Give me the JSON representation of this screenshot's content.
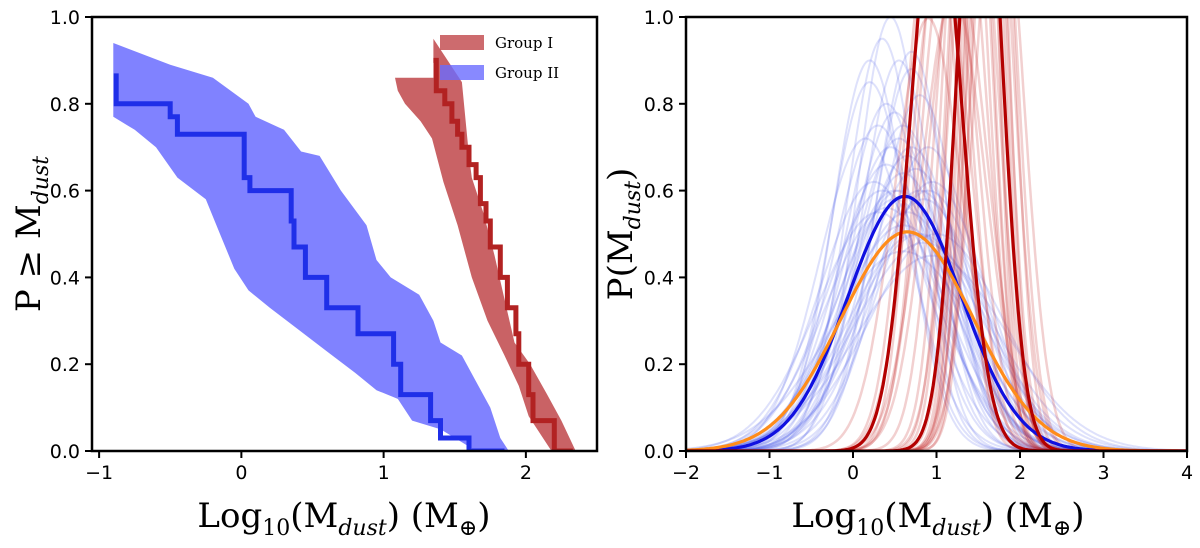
{
  "figure": {
    "background": "#ffffff"
  },
  "chart_data": [
    {
      "type": "line",
      "panel": "left",
      "xlabel_main": "Log",
      "xlabel_sub": "10",
      "xlabel_rest": "(M",
      "xlabel_sub2": "dust",
      "xlabel_tail": ") (M",
      "xlabel_unit_sub": "⊕",
      "xlabel_end": ")",
      "ylabel_main": "P ≥ M",
      "ylabel_sub": "dust",
      "xlim": [
        -1.05,
        2.5
      ],
      "ylim": [
        0,
        1
      ],
      "xticks": [
        -1,
        0,
        1,
        2
      ],
      "xtick_labels": [
        "−1",
        "0",
        "1",
        "2"
      ],
      "yticks": [
        0,
        0.2,
        0.4,
        0.6,
        0.8,
        1.0
      ],
      "ytick_labels": [
        "0.0",
        "0.2",
        "0.4",
        "0.6",
        "0.8",
        "1.0"
      ],
      "grid": false,
      "legend_position": "top-right",
      "series": [
        {
          "name": "Group I",
          "color": "#b22222",
          "fill_color": "#c0464a",
          "band_upper": [
            [
              1.35,
              0.95
            ],
            [
              1.45,
              0.9
            ],
            [
              1.55,
              0.85
            ],
            [
              1.6,
              0.68
            ],
            [
              1.62,
              0.63
            ],
            [
              1.7,
              0.55
            ],
            [
              1.78,
              0.45
            ],
            [
              1.85,
              0.35
            ],
            [
              1.92,
              0.25
            ],
            [
              2.03,
              0.2
            ],
            [
              2.15,
              0.13
            ],
            [
              2.25,
              0.07
            ],
            [
              2.35,
              0.0
            ]
          ],
          "band_lower": [
            [
              2.18,
              0.0
            ],
            [
              2.02,
              0.08
            ],
            [
              1.95,
              0.15
            ],
            [
              1.85,
              0.22
            ],
            [
              1.73,
              0.3
            ],
            [
              1.62,
              0.4
            ],
            [
              1.52,
              0.52
            ],
            [
              1.42,
              0.62
            ],
            [
              1.34,
              0.72
            ],
            [
              1.26,
              0.76
            ],
            [
              1.15,
              0.8
            ],
            [
              1.1,
              0.83
            ],
            [
              1.08,
              0.86
            ],
            [
              1.35,
              0.86
            ]
          ],
          "step_x": [
            1.35,
            1.35,
            1.37,
            1.37,
            1.43,
            1.43,
            1.48,
            1.48,
            1.52,
            1.52,
            1.55,
            1.55,
            1.6,
            1.6,
            1.65,
            1.65,
            1.68,
            1.68,
            1.72,
            1.72,
            1.75,
            1.75,
            1.82,
            1.82,
            1.87,
            1.87,
            1.93,
            1.93,
            1.95,
            1.95,
            2.02,
            2.02,
            2.05,
            2.05,
            2.2,
            2.2,
            2.33
          ],
          "step_y": [
            0.9,
            0.9,
            0.9,
            0.83,
            0.83,
            0.8,
            0.8,
            0.76,
            0.76,
            0.73,
            0.73,
            0.7,
            0.7,
            0.66,
            0.66,
            0.63,
            0.63,
            0.57,
            0.57,
            0.53,
            0.53,
            0.47,
            0.47,
            0.4,
            0.4,
            0.33,
            0.33,
            0.27,
            0.27,
            0.2,
            0.2,
            0.13,
            0.13,
            0.07,
            0.07,
            0.0,
            0.0
          ]
        },
        {
          "name": "Group II",
          "color": "#1f2fe8",
          "fill_color": "#6a6cff",
          "band_upper": [
            [
              -0.9,
              0.94
            ],
            [
              -0.5,
              0.89
            ],
            [
              -0.2,
              0.86
            ],
            [
              0.05,
              0.8
            ],
            [
              0.1,
              0.77
            ],
            [
              0.3,
              0.74
            ],
            [
              0.42,
              0.69
            ],
            [
              0.55,
              0.68
            ],
            [
              0.7,
              0.6
            ],
            [
              0.88,
              0.52
            ],
            [
              0.95,
              0.44
            ],
            [
              1.05,
              0.4
            ],
            [
              1.25,
              0.36
            ],
            [
              1.35,
              0.3
            ],
            [
              1.4,
              0.25
            ],
            [
              1.55,
              0.22
            ],
            [
              1.65,
              0.16
            ],
            [
              1.75,
              0.1
            ],
            [
              1.82,
              0.03
            ],
            [
              1.88,
              0.0
            ]
          ],
          "band_lower": [
            [
              1.65,
              0.0
            ],
            [
              1.55,
              0.02
            ],
            [
              1.4,
              0.05
            ],
            [
              1.2,
              0.07
            ],
            [
              1.1,
              0.12
            ],
            [
              0.95,
              0.14
            ],
            [
              0.8,
              0.18
            ],
            [
              0.6,
              0.23
            ],
            [
              0.4,
              0.28
            ],
            [
              0.2,
              0.33
            ],
            [
              0.05,
              0.37
            ],
            [
              -0.05,
              0.42
            ],
            [
              -0.15,
              0.5
            ],
            [
              -0.25,
              0.58
            ],
            [
              -0.45,
              0.63
            ],
            [
              -0.6,
              0.7
            ],
            [
              -0.75,
              0.74
            ],
            [
              -0.9,
              0.77
            ]
          ],
          "step_x": [
            -0.88,
            -0.88,
            -0.88,
            -0.5,
            -0.5,
            -0.45,
            -0.45,
            0.02,
            0.02,
            0.06,
            0.06,
            0.35,
            0.35,
            0.37,
            0.37,
            0.45,
            0.45,
            0.6,
            0.6,
            0.82,
            0.82,
            1.07,
            1.07,
            1.12,
            1.12,
            1.33,
            1.33,
            1.4,
            1.4,
            1.6,
            1.6,
            1.65,
            1.65,
            1.85
          ],
          "step_y": [
            0.87,
            0.87,
            0.8,
            0.8,
            0.77,
            0.77,
            0.73,
            0.73,
            0.63,
            0.63,
            0.6,
            0.6,
            0.53,
            0.53,
            0.47,
            0.47,
            0.4,
            0.4,
            0.33,
            0.33,
            0.27,
            0.27,
            0.2,
            0.2,
            0.13,
            0.13,
            0.07,
            0.07,
            0.03,
            0.03,
            0.0,
            0.0,
            0.0,
            0.0
          ]
        }
      ]
    },
    {
      "type": "line",
      "panel": "right",
      "xlabel_main": "Log",
      "xlabel_sub": "10",
      "xlabel_rest": "(M",
      "xlabel_sub2": "dust",
      "xlabel_tail": ") (M",
      "xlabel_unit_sub": "⊕",
      "xlabel_end": ")",
      "ylabel_main": "P(M",
      "ylabel_sub": "dust",
      "ylabel_end": ")",
      "xlim": [
        -2,
        4
      ],
      "ylim": [
        0,
        1
      ],
      "xticks": [
        -2,
        -1,
        0,
        1,
        2,
        3,
        4
      ],
      "xtick_labels": [
        "−2",
        "−1",
        "0",
        "1",
        "2",
        "3",
        "4"
      ],
      "yticks": [
        0,
        0.2,
        0.4,
        0.6,
        0.8,
        1.0
      ],
      "ytick_labels": [
        "0.0",
        "0.2",
        "0.4",
        "0.6",
        "0.8",
        "1.0"
      ],
      "grid": false,
      "curves_blue_color": "#4a5ae8",
      "curves_red_color": "#c22a2a",
      "series": [
        {
          "kind": "gaussian",
          "mu": 0.62,
          "sigma": 0.68,
          "color": "#1010e0",
          "width": 3.2
        },
        {
          "kind": "gaussian",
          "mu": 0.65,
          "sigma": 0.79,
          "color": "#ff8c1a",
          "width": 3.2
        },
        {
          "kind": "gaussian",
          "mu": 1.0,
          "sigma": 0.31,
          "color": "#b30000",
          "width": 3.2
        },
        {
          "kind": "gaussian",
          "mu": 1.52,
          "sigma": 0.26,
          "color": "#b30000",
          "width": 3.2
        }
      ],
      "blue_samples": [
        [
          0.3,
          0.55
        ],
        [
          0.5,
          0.6
        ],
        [
          0.7,
          0.7
        ],
        [
          0.9,
          0.6
        ],
        [
          0.4,
          0.8
        ],
        [
          0.6,
          0.75
        ],
        [
          0.8,
          0.5
        ],
        [
          0.55,
          0.9
        ],
        [
          0.2,
          0.85
        ],
        [
          0.75,
          0.65
        ],
        [
          0.45,
          0.7
        ],
        [
          0.65,
          0.55
        ],
        [
          0.95,
          0.45
        ],
        [
          0.35,
          0.95
        ],
        [
          0.85,
          0.58
        ],
        [
          0.5,
          0.78
        ],
        [
          0.25,
          0.62
        ],
        [
          0.7,
          0.88
        ],
        [
          0.6,
          0.52
        ],
        [
          0.4,
          0.66
        ],
        [
          1.0,
          0.5
        ],
        [
          0.15,
          0.72
        ],
        [
          0.8,
          0.82
        ],
        [
          0.55,
          0.6
        ],
        [
          0.45,
          1.0
        ],
        [
          0.65,
          0.68
        ],
        [
          0.3,
          0.75
        ],
        [
          0.9,
          0.7
        ],
        [
          0.5,
          0.58
        ],
        [
          0.7,
          0.92
        ],
        [
          0.35,
          0.6
        ],
        [
          0.6,
          0.64
        ],
        [
          0.8,
          0.6
        ],
        [
          0.4,
          0.56
        ],
        [
          0.55,
          0.72
        ],
        [
          0.2,
          0.9
        ],
        [
          0.75,
          0.5
        ],
        [
          0.95,
          0.62
        ],
        [
          0.6,
          0.46
        ],
        [
          0.85,
          0.48
        ]
      ],
      "red_samples": [
        [
          1.3,
          0.3
        ],
        [
          1.4,
          0.25
        ],
        [
          1.5,
          0.22
        ],
        [
          1.6,
          0.24
        ],
        [
          1.7,
          0.26
        ],
        [
          1.45,
          0.28
        ],
        [
          1.55,
          0.23
        ],
        [
          1.65,
          0.27
        ],
        [
          1.35,
          0.26
        ],
        [
          1.75,
          0.29
        ],
        [
          1.5,
          0.2
        ],
        [
          1.58,
          0.22
        ],
        [
          1.42,
          0.24
        ],
        [
          1.68,
          0.23
        ],
        [
          1.52,
          0.25
        ],
        [
          1.62,
          0.21
        ],
        [
          1.05,
          0.35
        ],
        [
          0.95,
          0.32
        ],
        [
          1.1,
          0.3
        ],
        [
          1.0,
          0.28
        ],
        [
          1.2,
          0.38
        ],
        [
          0.9,
          0.4
        ],
        [
          1.15,
          0.33
        ],
        [
          1.25,
          0.36
        ]
      ]
    }
  ]
}
